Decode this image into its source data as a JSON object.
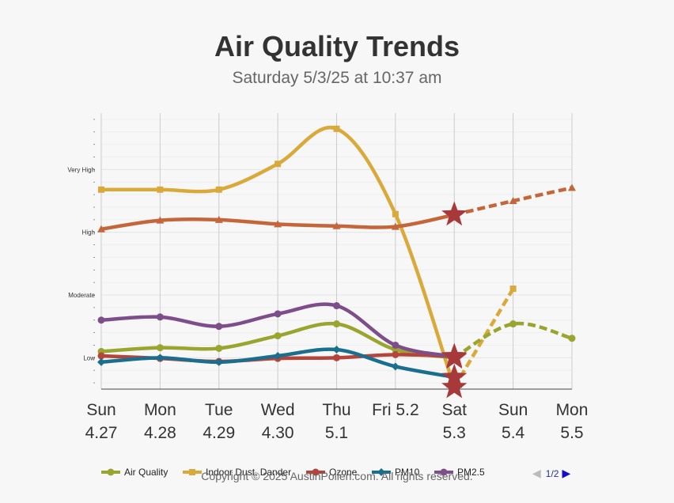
{
  "page": {
    "title": "Air Quality Trends",
    "subtitle": "Saturday 5/3/25 at 10:37 am",
    "copyright": "Copyright © 2025 AustinPollen.com.  All rights reserved.",
    "pager": {
      "label": "1/2",
      "prev_icon": "triangle-left-icon",
      "next_icon": "triangle-right-icon"
    }
  },
  "chart_data": {
    "type": "line",
    "title": "Air Quality Trends",
    "subtitle": "Saturday 5/3/25 at 10:37 am",
    "categories": [
      {
        "day": "Sun",
        "date": "4.27"
      },
      {
        "day": "Mon",
        "date": "4.28"
      },
      {
        "day": "Tue",
        "date": "4.29"
      },
      {
        "day": "Wed",
        "date": "4.30"
      },
      {
        "day": "Thu",
        "date": "5.1"
      },
      {
        "day": "Fri 5.2",
        "date": ""
      },
      {
        "day": "Sat",
        "date": "5.3"
      },
      {
        "day": "Sun",
        "date": "5.4"
      },
      {
        "day": "Mon",
        "date": "5.5"
      }
    ],
    "y_levels": [
      {
        "label": "Low",
        "value": 1
      },
      {
        "label": "Moderate",
        "value": 2
      },
      {
        "label": "High",
        "value": 3
      },
      {
        "label": "Very High",
        "value": 4
      }
    ],
    "ylim": [
      0.5,
      4.9
    ],
    "today_index": 6,
    "series": [
      {
        "name": "Air Quality",
        "color": "#9aa52f",
        "marker": "circle",
        "values": [
          1.1,
          1.16,
          1.15,
          1.35,
          1.54,
          1.13,
          1.0,
          1.54,
          1.31
        ]
      },
      {
        "name": "Indoor Dust, Dander",
        "color": "#d9a93a",
        "marker": "square",
        "values": [
          3.68,
          3.68,
          3.68,
          4.09,
          4.65,
          3.29,
          0.53,
          2.1,
          null
        ]
      },
      {
        "name": "Ozone",
        "color": "#b5453a",
        "marker": "circle",
        "values": [
          1.03,
          0.99,
          0.94,
          0.99,
          1.0,
          1.05,
          1.02,
          null,
          null
        ]
      },
      {
        "name": "PM10",
        "color": "#1a6e8e",
        "marker": "diamond",
        "values": [
          0.93,
          1.0,
          0.93,
          1.03,
          1.13,
          0.86,
          0.69,
          null,
          null
        ]
      },
      {
        "name": "PM2.5",
        "color": "#7d4e8a",
        "marker": "circle",
        "values": [
          1.6,
          1.65,
          1.5,
          1.7,
          1.83,
          1.2,
          1.02,
          null,
          null
        ]
      },
      {
        "name": "",
        "color": "#c4663a",
        "marker": "triangle",
        "values": [
          3.05,
          3.19,
          3.2,
          3.13,
          3.1,
          3.09,
          3.28,
          3.5,
          3.71
        ]
      }
    ]
  },
  "legend": {
    "items": [
      {
        "label": "Air Quality",
        "color": "#9aa52f",
        "marker": "circle"
      },
      {
        "label": "Indoor Dust, Dander",
        "color": "#d9a93a",
        "marker": "square"
      },
      {
        "label": "Ozone",
        "color": "#b5453a",
        "marker": "circle"
      },
      {
        "label": "PM10",
        "color": "#1a6e8e",
        "marker": "diamond"
      },
      {
        "label": "PM2.5",
        "color": "#7d4e8a",
        "marker": "circle"
      }
    ]
  }
}
